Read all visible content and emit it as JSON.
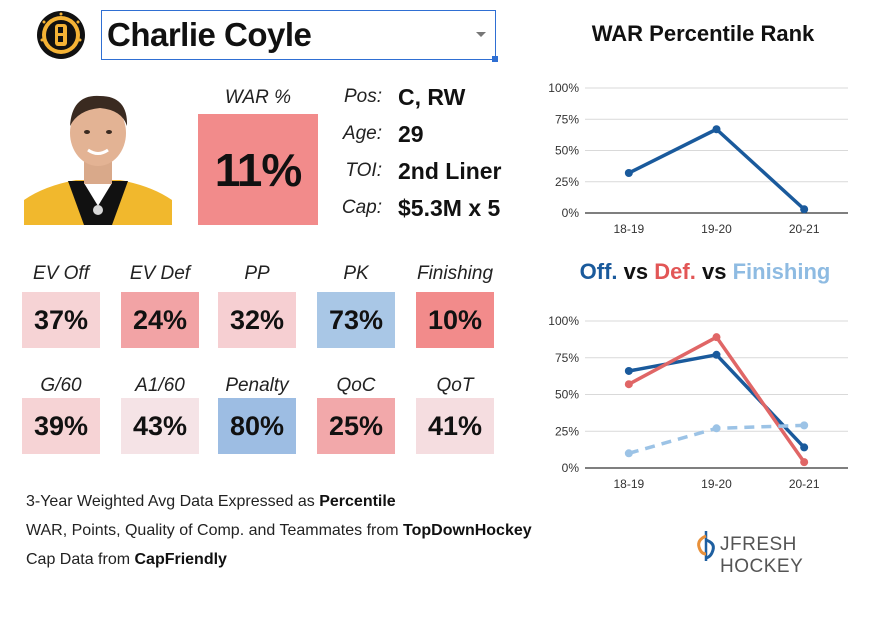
{
  "header": {
    "player_select": {
      "value": "Charlie Coyle",
      "options_visible": [
        "Charlie Coyle"
      ]
    },
    "team_logo_icon": "bruins-logo-icon"
  },
  "war": {
    "label": "WAR %",
    "value": "11%",
    "color": "#f28b8b"
  },
  "info": [
    {
      "key": "Pos:",
      "value": "C, RW"
    },
    {
      "key": "Age:",
      "value": "29"
    },
    {
      "key": "TOI:",
      "value": "2nd Liner"
    },
    {
      "key": "Cap:",
      "value": "$5.3M x 5"
    }
  ],
  "stats_row1": [
    {
      "label": "EV Off",
      "value": "37%",
      "color": "#f6d3d5"
    },
    {
      "label": "EV Def",
      "value": "24%",
      "color": "#f2a3a5"
    },
    {
      "label": "PP",
      "value": "32%",
      "color": "#f6cfd2"
    },
    {
      "label": "PK",
      "value": "73%",
      "color": "#a9c7e6"
    },
    {
      "label": "Finishing",
      "value": "10%",
      "color": "#f28b8b"
    }
  ],
  "stats_row2": [
    {
      "label": "G/60",
      "value": "39%",
      "color": "#f6d3d5"
    },
    {
      "label": "A1/60",
      "value": "43%",
      "color": "#f5e3e6"
    },
    {
      "label": "Penalty",
      "value": "80%",
      "color": "#9dbde3"
    },
    {
      "label": "QoC",
      "value": "25%",
      "color": "#f2a8aa"
    },
    {
      "label": "QoT",
      "value": "41%",
      "color": "#f5dde0"
    }
  ],
  "footnotes": [
    {
      "text": "3-Year Weighted Avg Data Expressed as ",
      "bold": "Percentile"
    },
    {
      "text": "WAR, Points, Quality of Comp. and Teammates from ",
      "bold": "TopDownHockey"
    },
    {
      "text": "Cap Data from ",
      "bold": "CapFriendly"
    }
  ],
  "brand": {
    "text": "JFRESH HOCKEY",
    "icon": "jfresh-logo-icon"
  },
  "chart2_title_parts": {
    "off": "Off.",
    "vs1": "vs",
    "def": "Def.",
    "vs2": "vs",
    "fin": "Finishing"
  },
  "chart_data": [
    {
      "type": "line",
      "title": "WAR Percentile Rank",
      "categories": [
        "18-19",
        "19-20",
        "20-21"
      ],
      "yticks": [
        "0%",
        "25%",
        "50%",
        "75%",
        "100%"
      ],
      "ylim": [
        0,
        100
      ],
      "grid": true,
      "xlabel": "",
      "ylabel": "",
      "series": [
        {
          "name": "WAR",
          "values": [
            32,
            67,
            3
          ],
          "color": "#1a5a9c",
          "dashed": false
        }
      ]
    },
    {
      "type": "line",
      "title": "Off. vs Def. vs Finishing",
      "categories": [
        "18-19",
        "19-20",
        "20-21"
      ],
      "yticks": [
        "0%",
        "25%",
        "50%",
        "75%",
        "100%"
      ],
      "ylim": [
        0,
        100
      ],
      "grid": true,
      "xlabel": "",
      "ylabel": "",
      "series": [
        {
          "name": "Off.",
          "values": [
            66,
            77,
            14
          ],
          "color": "#1a5a9c",
          "dashed": false
        },
        {
          "name": "Def.",
          "values": [
            57,
            89,
            4
          ],
          "color": "#e06666",
          "dashed": false
        },
        {
          "name": "Finishing",
          "values": [
            10,
            27,
            29
          ],
          "color": "#9cc3e6",
          "dashed": true
        }
      ]
    }
  ]
}
